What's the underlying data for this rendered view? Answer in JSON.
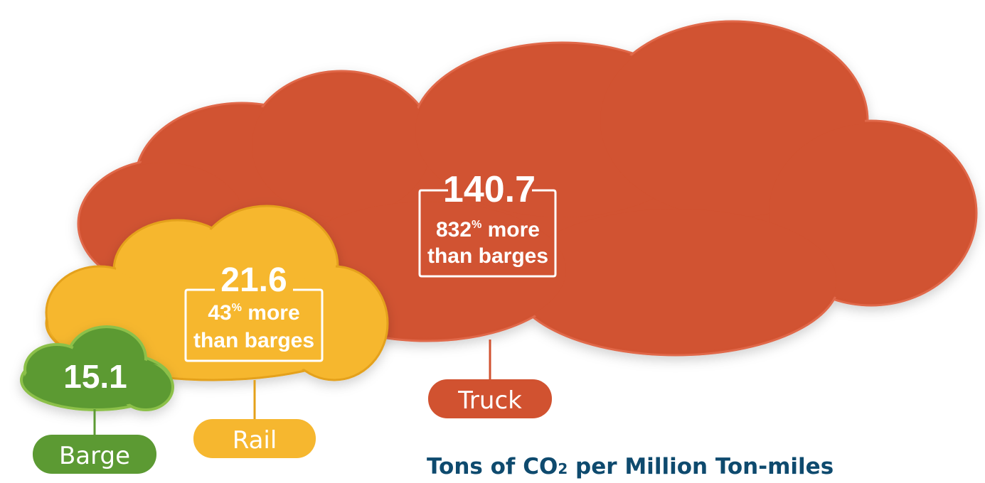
{
  "chart_data": {
    "type": "bar",
    "title": "Tons of CO₂ per Million Ton-miles",
    "categories": [
      "Barge",
      "Rail",
      "Truck"
    ],
    "values": [
      15.1,
      21.6,
      140.7
    ],
    "value_labels": [
      "15.1",
      "21.6",
      "140.7"
    ],
    "comparisons": [
      "",
      "43% more than barges",
      "832% more than barges"
    ],
    "series": [
      {
        "label": "Barge",
        "value": 15.1,
        "value_text": "15.1",
        "comparison_pct": "",
        "comparison_line1": "",
        "comparison_line2": "",
        "color": "#5c9a33"
      },
      {
        "label": "Rail",
        "value": 21.6,
        "value_text": "21.6",
        "comparison_pct": "43%",
        "comparison_line1": " more",
        "comparison_line2": "than barges",
        "color": "#f6b72f"
      },
      {
        "label": "Truck",
        "value": 140.7,
        "value_text": "140.7",
        "comparison_pct": "832%",
        "comparison_line1": " more",
        "comparison_line2": "than barges",
        "color": "#d15230"
      }
    ],
    "caption_main": "Tons of CO",
    "caption_sub": "2",
    "caption_rest": " per Million Ton-miles",
    "caption_color": "#0e4a6e"
  }
}
